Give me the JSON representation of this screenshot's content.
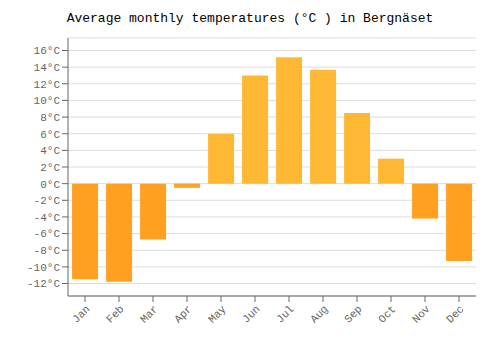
{
  "chart_data": {
    "type": "bar",
    "title": "Average monthly temperatures (°C ) in Bergnäset",
    "categories": [
      "Jan",
      "Feb",
      "Mar",
      "Apr",
      "May",
      "Jun",
      "Jul",
      "Aug",
      "Sep",
      "Oct",
      "Nov",
      "Dec"
    ],
    "values": [
      -11.5,
      -11.8,
      -6.7,
      -0.5,
      6.0,
      13.0,
      15.2,
      13.7,
      8.5,
      3.0,
      -4.2,
      -9.3
    ],
    "colors": [
      "#FFA020",
      "#FFA020",
      "#FFA020",
      "#FFA020",
      "#FFB833",
      "#FFB833",
      "#FFB833",
      "#FFB833",
      "#FFB833",
      "#FFB833",
      "#FFA020",
      "#FFA020"
    ],
    "ylim": [
      -13.5,
      17.5
    ],
    "yticks": [
      {
        "value": -12,
        "label": "-12°C"
      },
      {
        "value": -10,
        "label": "-10°C"
      },
      {
        "value": -8,
        "label": "-8°C"
      },
      {
        "value": -6,
        "label": "-6°C"
      },
      {
        "value": -4,
        "label": "-4°C"
      },
      {
        "value": -2,
        "label": "-2°C"
      },
      {
        "value": 0,
        "label": "0°C"
      },
      {
        "value": 2,
        "label": "2°C"
      },
      {
        "value": 4,
        "label": "4°C"
      },
      {
        "value": 6,
        "label": "6°C"
      },
      {
        "value": 8,
        "label": "8°C"
      },
      {
        "value": 10,
        "label": "10°C"
      },
      {
        "value": 12,
        "label": "12°C"
      },
      {
        "value": 14,
        "label": "14°C"
      },
      {
        "value": 16,
        "label": "16°C"
      }
    ],
    "grid": true
  }
}
